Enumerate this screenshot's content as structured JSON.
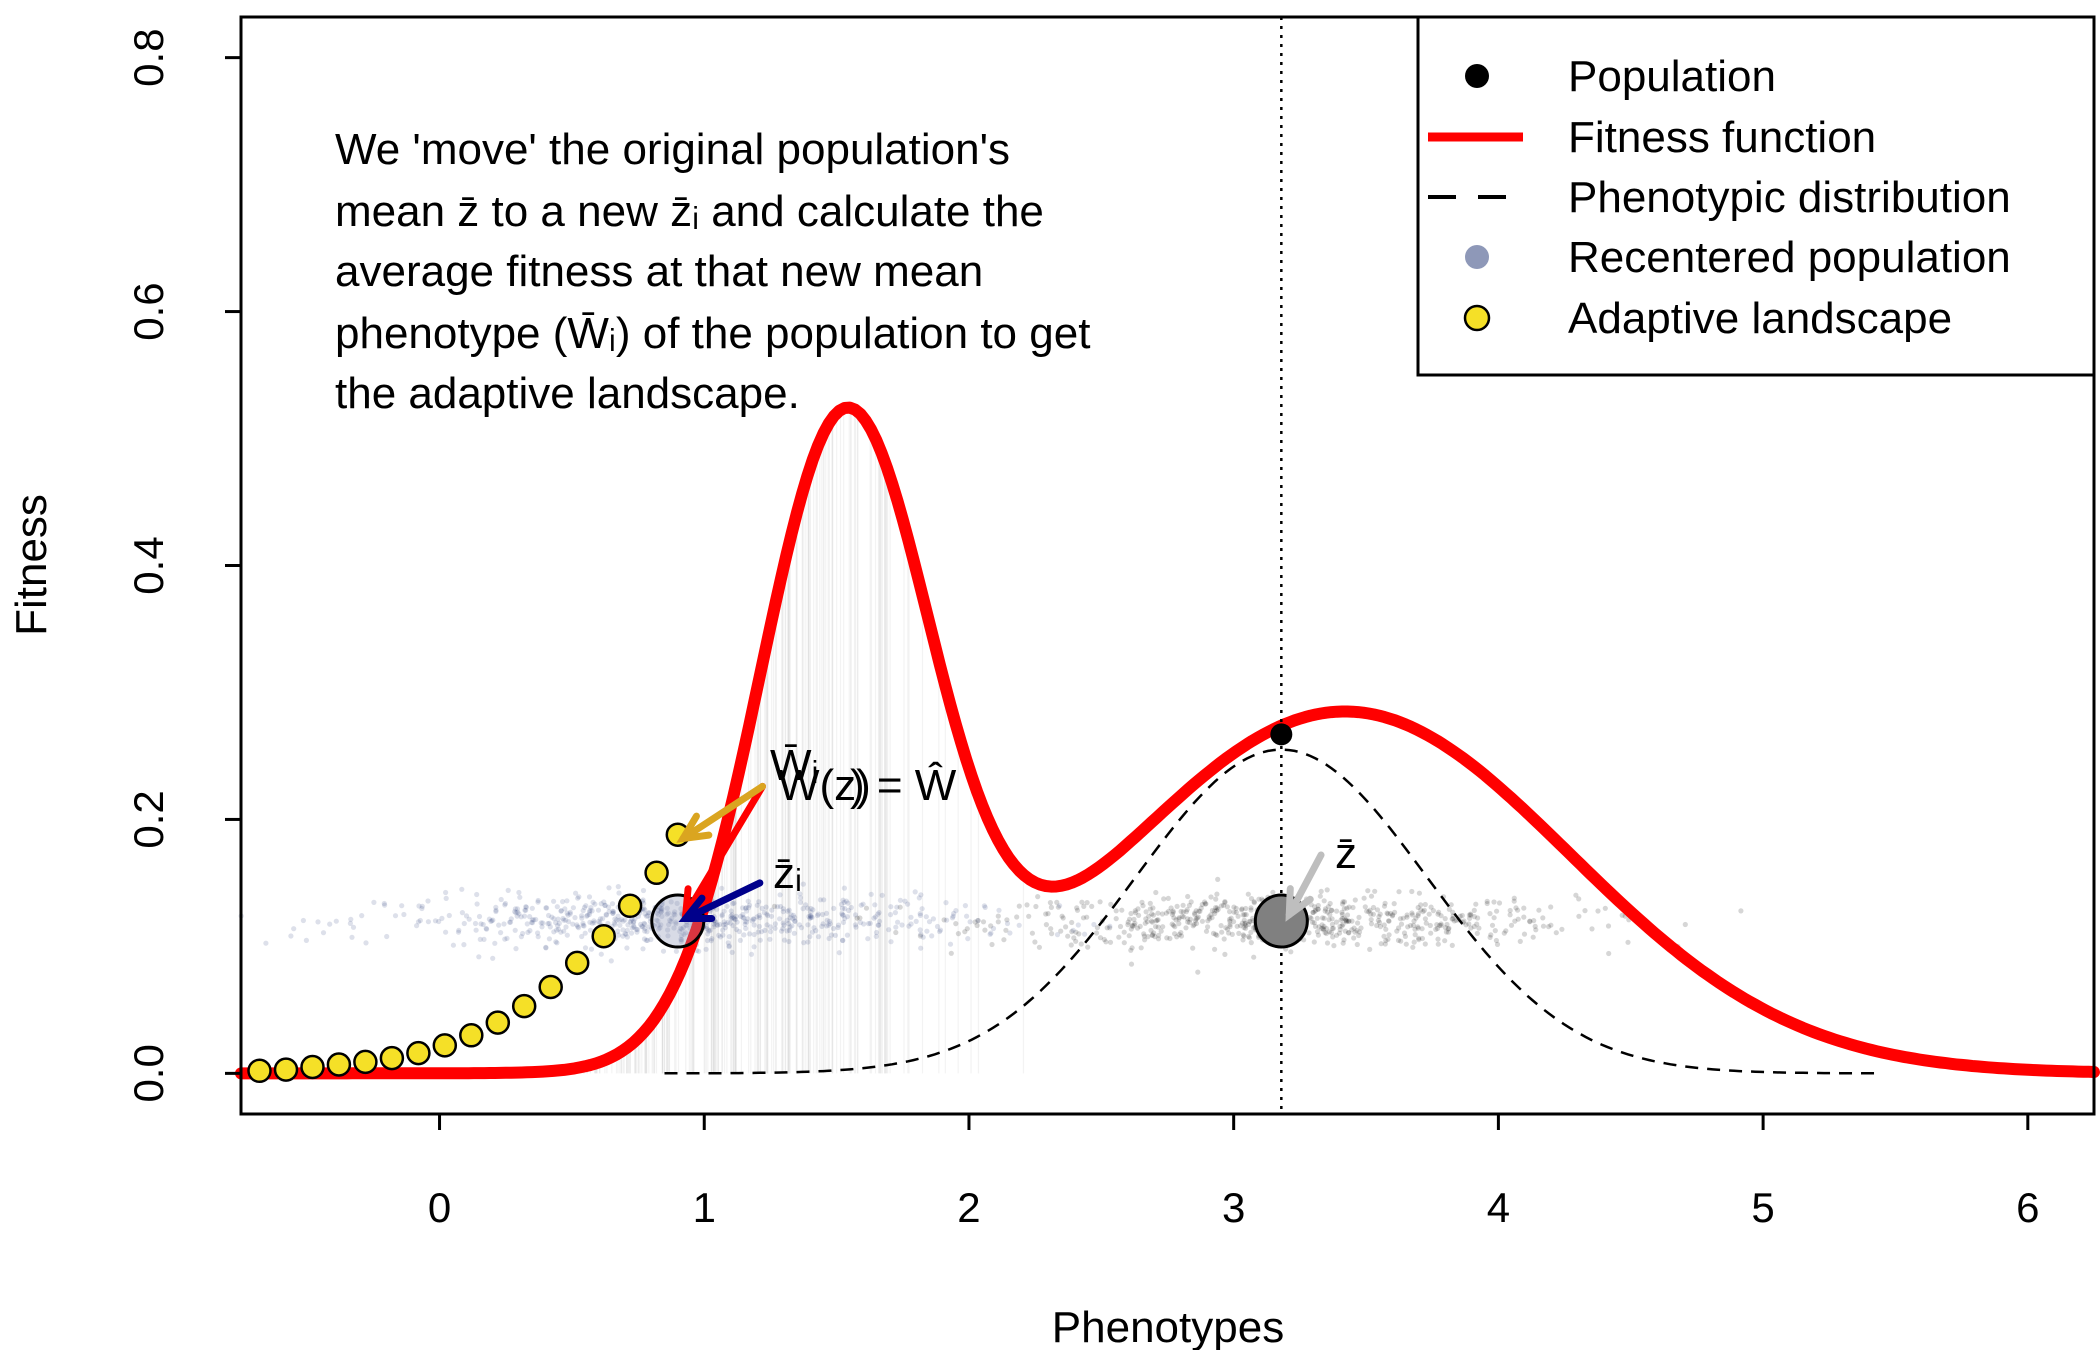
{
  "chart_data": {
    "type": "scatter",
    "xlabel": "Phenotypes",
    "ylabel": "Fitness",
    "xlim": [
      -0.75,
      6.25
    ],
    "ylim": [
      -0.032,
      0.832
    ],
    "xticks": [
      "0",
      "1",
      "2",
      "3",
      "4",
      "5",
      "6"
    ],
    "yticks": [
      "0.0",
      "0.2",
      "0.4",
      "0.6",
      "0.8"
    ],
    "note_lines": [
      "We 'move' the original population's",
      "mean z̄ to a new z̄ᵢ and calculate the",
      "average fitness at that new mean",
      "phenotype (W̄ᵢ) of the population to get",
      "the adaptive landscape."
    ],
    "legend": {
      "position": "top-right",
      "entries": [
        {
          "label": "Population",
          "symbol": "point",
          "color": "#000000"
        },
        {
          "label": "Fitness function",
          "symbol": "line",
          "color": "#ff0000"
        },
        {
          "label": "Phenotypic distribution",
          "symbol": "dashed",
          "color": "#000000"
        },
        {
          "label": "Recentered population",
          "symbol": "point",
          "color": "#8e98b8"
        },
        {
          "label": "Adaptive landscape",
          "symbol": "point",
          "color": "#f5e027"
        }
      ]
    },
    "fitness_function": {
      "color": "#ff0000",
      "components": [
        {
          "weight": 0.5,
          "mean": 1.53,
          "sd": 0.32
        },
        {
          "weight": 0.285,
          "mean": 3.42,
          "sd": 0.85
        }
      ]
    },
    "phenotypic_distribution": {
      "mean": 3.18,
      "sd": 0.55,
      "peak": 0.255,
      "x_range": [
        0.85,
        5.45
      ]
    },
    "population_point": {
      "x": 3.18,
      "y": 0.267
    },
    "mean_z": {
      "x": 3.18,
      "y": 0.12,
      "label": "z̄"
    },
    "mean_zi": {
      "x": 0.9,
      "y": 0.12,
      "label": "z̄ᵢ"
    },
    "adaptive_landscape": {
      "x": [
        -0.68,
        -0.58,
        -0.48,
        -0.38,
        -0.28,
        -0.18,
        -0.08,
        0.02,
        0.12,
        0.22,
        0.32,
        0.42,
        0.52,
        0.62,
        0.72,
        0.82,
        0.9
      ],
      "y": [
        0.002,
        0.003,
        0.005,
        0.007,
        0.009,
        0.012,
        0.016,
        0.022,
        0.03,
        0.04,
        0.053,
        0.068,
        0.087,
        0.108,
        0.132,
        0.158,
        0.188
      ]
    },
    "population_points": {
      "mean": 3.18,
      "sd": 0.55,
      "y_center": 0.12,
      "count": 700,
      "color": "#000000"
    },
    "recentered_points": {
      "mean": 0.9,
      "sd": 0.55,
      "y_center": 0.12,
      "count": 700,
      "color": "#2c3e7a"
    },
    "annotations": {
      "w_bar_i": "W̄ᵢ",
      "w_z": "W(z)",
      "equals_w_hat": ") = Ŵ"
    },
    "colors": {
      "fitness": "#ff0000",
      "landscape_fill": "#f5e027",
      "recentered_arrow": "#00008b",
      "landscape_arrow": "#daa520",
      "mean_arrow": "#bebebe",
      "mean_circle": "#808080"
    }
  }
}
